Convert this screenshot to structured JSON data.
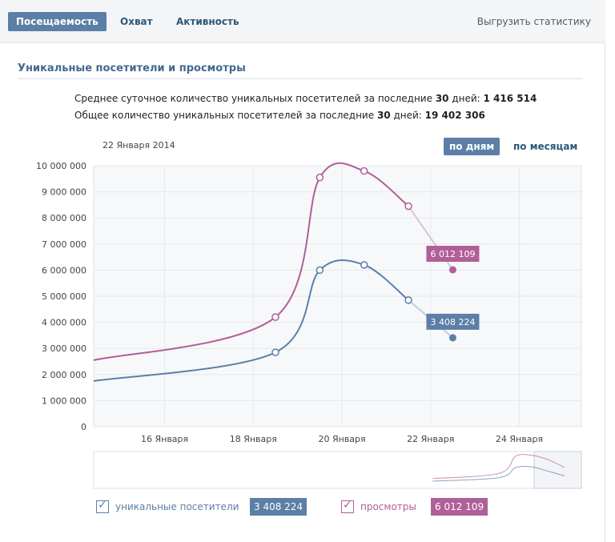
{
  "tabs": [
    {
      "label": "Посещаемость",
      "active": true
    },
    {
      "label": "Охват",
      "active": false
    },
    {
      "label": "Активность",
      "active": false
    }
  ],
  "export_label": "Выгрузить статистику",
  "section_title": "Уникальные посетители и просмотры",
  "summary": {
    "line1_prefix": "Среднее суточное количество уникальных посетителей за последние ",
    "line1_days": "30",
    "line1_mid": " дней: ",
    "line1_value": "1 416 514",
    "line2_prefix": "Общее количество уникальных посетителей за последние ",
    "line2_days": "30",
    "line2_mid": " дней: ",
    "line2_value": "19 402 306"
  },
  "chart_header": {
    "date": "22 Января 2014",
    "period_day": "по дням",
    "period_month": "по месяцам"
  },
  "colors": {
    "visitors": "#5b7fa6",
    "views": "#b05f98",
    "grid": "#e5e9ee"
  },
  "chart_data": {
    "type": "line",
    "y_ticks": [
      "10 000 000",
      "9 000 000",
      "8 000 000",
      "7 000 000",
      "6 000 000",
      "5 000 000",
      "4 000 000",
      "3 000 000",
      "2 000 000",
      "1 000 000",
      "0"
    ],
    "ylim": [
      0,
      10000000
    ],
    "x_ticks": [
      {
        "day": 16,
        "label": "16 Января"
      },
      {
        "day": 18,
        "label": "18 Января"
      },
      {
        "day": 20,
        "label": "20 Января"
      },
      {
        "day": 22,
        "label": "22 Января"
      },
      {
        "day": 24,
        "label": "24 Января"
      }
    ],
    "xlim": [
      14.4,
      25.4
    ],
    "series": [
      {
        "name": "уникальные посетители",
        "color": "#5b7fa6",
        "points": [
          [
            14.4,
            1750000
          ],
          [
            18.5,
            2850000
          ],
          [
            19.5,
            6000000
          ],
          [
            20.5,
            6200000
          ],
          [
            21.5,
            4850000
          ]
        ],
        "last": [
          22.5,
          3408224
        ],
        "last_label": "3 408 224"
      },
      {
        "name": "просмотры",
        "color": "#b05f98",
        "points": [
          [
            14.4,
            2550000
          ],
          [
            18.5,
            4200000
          ],
          [
            19.5,
            9550000
          ],
          [
            20.5,
            9800000
          ],
          [
            21.5,
            8450000
          ]
        ],
        "last": [
          22.5,
          6012109
        ],
        "last_label": "6 012 109"
      }
    ]
  },
  "legend": {
    "visitors_label": "уникальные посетители",
    "visitors_value": "3 408 224",
    "views_label": "просмотры",
    "views_value": "6 012 109"
  }
}
